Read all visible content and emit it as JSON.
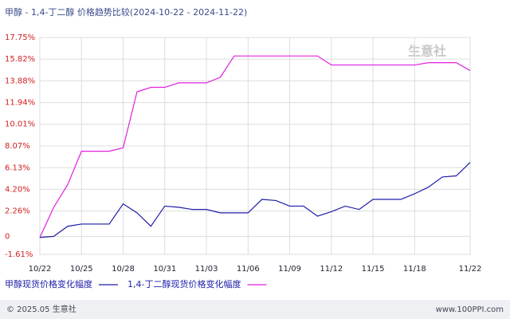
{
  "chart_data": {
    "type": "line",
    "title": "甲醇 - 1,4-丁二醇 价格趋势比较(2024-10-22 - 2024-11-22)",
    "categories": [
      "10/22",
      null,
      null,
      "10/25",
      null,
      null,
      "10/28",
      null,
      null,
      "10/31",
      null,
      null,
      "11/03",
      null,
      null,
      "11/06",
      null,
      null,
      "11/09",
      null,
      null,
      "11/12",
      null,
      null,
      "11/15",
      null,
      null,
      "11/18",
      null,
      null,
      null,
      "11/22"
    ],
    "series": [
      {
        "name": "甲醇现货价格变化幅度",
        "color": "#1c1ca8",
        "values": [
          -0.1,
          0,
          0.9,
          1.1,
          1.1,
          1.1,
          2.9,
          2.1,
          0.9,
          2.7,
          2.6,
          2.4,
          2.4,
          2.1,
          2.1,
          2.1,
          3.3,
          3.2,
          2.7,
          2.7,
          1.8,
          2.2,
          2.7,
          2.4,
          3.3,
          3.3,
          3.3,
          3.8,
          4.4,
          5.3,
          5.4,
          6.6
        ]
      },
      {
        "name": "1,4-丁二醇现货价格变化幅度",
        "color": "#e020e0",
        "values": [
          -0.1,
          2.6,
          4.6,
          7.6,
          7.6,
          7.6,
          7.9,
          12.9,
          13.3,
          13.3,
          13.7,
          13.7,
          13.7,
          14.2,
          16.1,
          16.1,
          16.1,
          16.1,
          16.1,
          16.1,
          16.1,
          15.3,
          15.3,
          15.3,
          15.3,
          15.3,
          15.3,
          15.3,
          15.5,
          15.5,
          15.5,
          14.8
        ]
      }
    ],
    "ylim": [
      -1.61,
      17.75
    ],
    "yticks": [
      {
        "value": -1.61,
        "label": "-1.61%"
      },
      0,
      {
        "value": 2.26,
        "label": "2.26%"
      },
      {
        "value": 4.2,
        "label": "4.20%"
      },
      {
        "value": 6.13,
        "label": "6.13%"
      },
      {
        "value": 8.07,
        "label": "8.07%"
      },
      {
        "value": 10.01,
        "label": "10.01%"
      },
      {
        "value": 11.94,
        "label": "11.94%"
      },
      {
        "value": 13.88,
        "label": "13.88%"
      },
      {
        "value": 15.82,
        "label": "15.82%"
      },
      {
        "value": 17.75,
        "label": "17.75%"
      }
    ],
    "grid": true,
    "watermark": "生意社",
    "footer_left": "© 2025.05 生意社",
    "footer_right": "www.100PPI.com"
  }
}
